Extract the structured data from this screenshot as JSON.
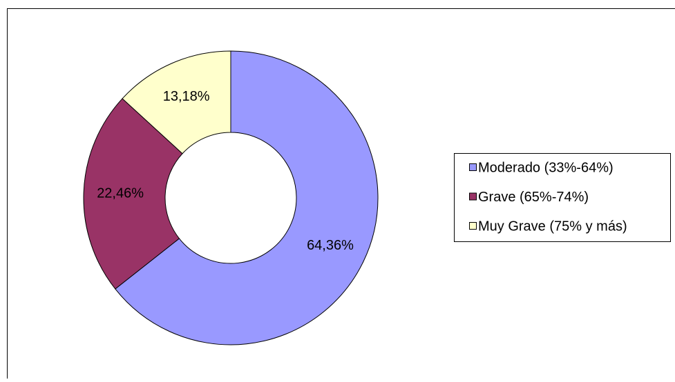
{
  "chart_data": {
    "type": "donut",
    "categories": [
      "Moderado (33%-64%)",
      "Grave (65%-74%)",
      "Muy Grave (75% y más)"
    ],
    "values": [
      64.36,
      22.46,
      13.18
    ],
    "value_labels": [
      "64,36%",
      "22,46%",
      "13,18%"
    ],
    "colors": [
      "#9999ff",
      "#993366",
      "#ffffcc"
    ],
    "legend": "right"
  }
}
